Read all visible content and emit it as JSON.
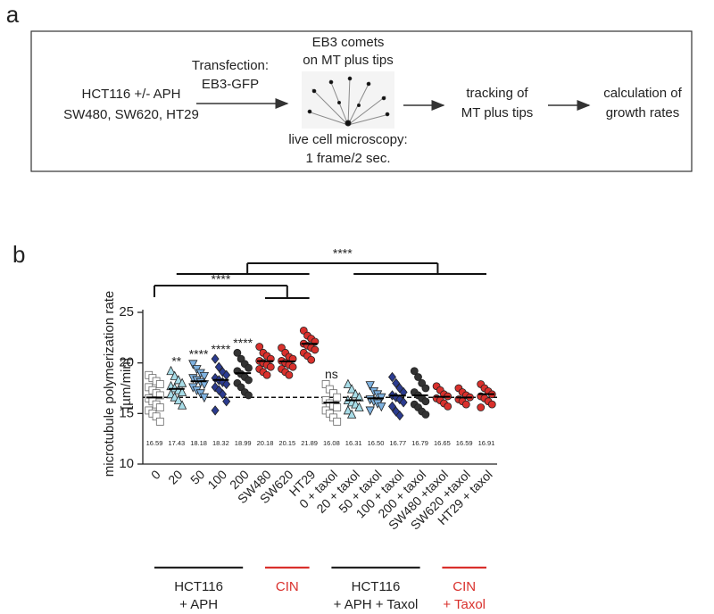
{
  "panel_a": {
    "label": "a",
    "input": [
      "HCT116 +/- APH",
      "SW480, SW620, HT29"
    ],
    "transfection": [
      "Transfection:",
      "EB3-GFP"
    ],
    "comets": [
      "EB3 comets",
      "on MT plus tips"
    ],
    "microscopy": [
      "live cell microscopy:",
      "1 frame/2 sec."
    ],
    "tracking": [
      "tracking of",
      "MT plus tips"
    ],
    "calculation": [
      "calculation of",
      "growth rates"
    ]
  },
  "chart_data": {
    "type": "dot",
    "panel_label": "b",
    "y_label": [
      "microtubule polymerization rate",
      "[µm/min]"
    ],
    "categories": [
      "0",
      "20",
      "50",
      "100",
      "200",
      "SW480",
      "SW620",
      "HT29",
      "0 + taxol",
      "20 + taxol",
      "50 + taxol",
      "100 + taxol",
      "200 + taxol",
      "SW480 +taxol",
      "SW620 +taxol",
      "HT29 + taxol"
    ],
    "means": [
      16.59,
      17.43,
      18.18,
      18.32,
      18.99,
      20.18,
      20.15,
      21.89,
      16.08,
      16.31,
      16.5,
      16.77,
      16.79,
      16.65,
      16.59,
      16.91
    ],
    "value_labels": [
      "16.59",
      "17.43",
      "18.18",
      "18.32",
      "18.99",
      "20.18",
      "20.15",
      "21.89",
      "16.08",
      "16.31",
      "16.50",
      "16.77",
      "16.79",
      "16.65",
      "16.59",
      "16.91"
    ],
    "markers": [
      "square",
      "triangle",
      "triangle-down",
      "diamond",
      "circle",
      "circle",
      "circle",
      "circle",
      "square",
      "triangle",
      "triangle-down",
      "diamond",
      "circle",
      "circle",
      "circle",
      "circle"
    ],
    "colors": [
      "#ffffff",
      "#a8dde8",
      "#7fb2e0",
      "#2b3b8f",
      "#333333",
      "#d9302c",
      "#d9302c",
      "#d9302c",
      "#ffffff",
      "#a8dde8",
      "#7fb2e0",
      "#2b3b8f",
      "#333333",
      "#d9302c",
      "#d9302c",
      "#d9302c"
    ],
    "points": [
      [
        18.8,
        18.5,
        18.2,
        17.9,
        17.6,
        17.3,
        17.0,
        16.8,
        16.5,
        16.2,
        15.9,
        15.6,
        15.3,
        15.0,
        14.7,
        14.2
      ],
      [
        19.2,
        18.7,
        18.3,
        18.0,
        17.7,
        17.5,
        17.3,
        17.1,
        16.9,
        16.6,
        16.3,
        15.8
      ],
      [
        19.9,
        19.4,
        19.0,
        18.7,
        18.5,
        18.3,
        18.1,
        17.9,
        17.6,
        17.3,
        17.0,
        16.6
      ],
      [
        20.4,
        19.6,
        19.1,
        18.8,
        18.5,
        18.3,
        18.1,
        17.9,
        17.6,
        17.3,
        16.9,
        16.2,
        15.3
      ],
      [
        21.0,
        20.4,
        19.9,
        19.5,
        19.2,
        18.9,
        18.6,
        18.3,
        18.0,
        17.6,
        17.1,
        16.8
      ],
      [
        21.6,
        21.0,
        20.7,
        20.4,
        20.2,
        20.0,
        19.8,
        19.6,
        19.4,
        19.1,
        18.8
      ],
      [
        21.5,
        21.0,
        20.6,
        20.4,
        20.2,
        20.0,
        19.8,
        19.6,
        19.4,
        19.1,
        18.8
      ],
      [
        23.2,
        22.7,
        22.4,
        22.1,
        21.9,
        21.7,
        21.5,
        21.3,
        21.0,
        20.7,
        20.3
      ],
      [
        17.9,
        17.4,
        17.0,
        16.6,
        16.3,
        16.0,
        15.8,
        15.6,
        15.3,
        15.0,
        14.6,
        14.2
      ],
      [
        17.9,
        17.4,
        16.9,
        16.6,
        16.3,
        16.1,
        15.9,
        15.6,
        15.3,
        14.9
      ],
      [
        17.8,
        17.2,
        16.9,
        16.6,
        16.4,
        16.2,
        16.0,
        15.7,
        15.3
      ],
      [
        18.6,
        18.0,
        17.5,
        17.1,
        16.8,
        16.6,
        16.4,
        16.1,
        15.7,
        15.2,
        14.8
      ],
      [
        19.2,
        18.6,
        18.0,
        17.5,
        17.1,
        16.8,
        16.5,
        16.2,
        15.9,
        15.6,
        15.2,
        14.9
      ],
      [
        17.7,
        17.3,
        16.9,
        16.7,
        16.5,
        16.3,
        16.0,
        15.7
      ],
      [
        17.5,
        17.1,
        16.8,
        16.6,
        16.4,
        16.2,
        15.9
      ],
      [
        17.9,
        17.5,
        17.2,
        16.9,
        16.7,
        16.5,
        16.2,
        15.9,
        15.6
      ]
    ],
    "significance": [
      null,
      "**",
      "****",
      "****",
      "****",
      null,
      null,
      null,
      "ns",
      null,
      null,
      null,
      null,
      null,
      null,
      null
    ],
    "reference_line": 16.6,
    "brackets": [
      {
        "label": "****"
      },
      {
        "label": "****"
      }
    ],
    "groups": [
      {
        "lines": [
          "HCT116",
          "+ APH"
        ],
        "colors": [
          "#222222",
          "#222222"
        ]
      },
      {
        "lines": [
          "CIN"
        ],
        "colors": [
          "#d9302c"
        ]
      },
      {
        "lines": [
          "HCT116",
          "+ APH + Taxol"
        ],
        "colors": [
          "#222222",
          "#222222"
        ]
      },
      {
        "lines": [
          "CIN",
          "+ Taxol"
        ],
        "colors": [
          "#d9302c",
          "#d9302c"
        ]
      }
    ],
    "ylim": [
      10,
      25
    ],
    "yticks": [
      10,
      15,
      20,
      25
    ]
  }
}
